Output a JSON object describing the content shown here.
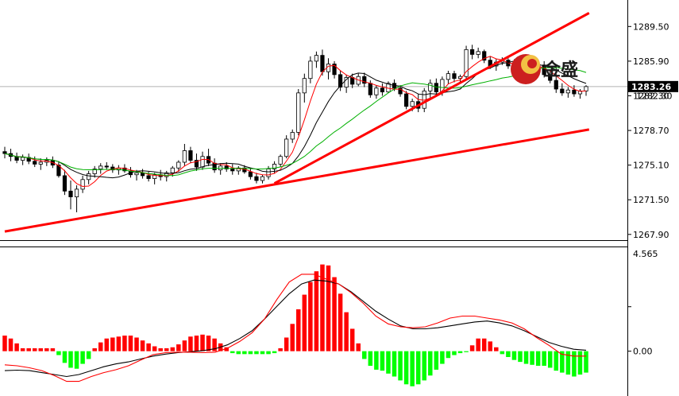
{
  "watermark": {
    "text": "金盛",
    "colors": {
      "outer": "#cc1f1f",
      "inner": "#f2c044"
    }
  },
  "colors": {
    "up_body": "#ffffff",
    "down_body": "#000000",
    "wick": "#000000",
    "ma_fast": "#ff0000",
    "ma_mid": "#000000",
    "ma_slow": "#00b000",
    "trendline": "#ff0000",
    "hist_pos": "#ff0000",
    "hist_neg": "#00ff00",
    "macd": "#000000",
    "signal": "#ff0000",
    "current_line": "#b0b0b0"
  },
  "price_axis": {
    "ticks": [
      "1289.50",
      "1285.90",
      "1282.30",
      "1278.70",
      "1275.10",
      "1271.50",
      "1267.90"
    ],
    "current": "1283.26",
    "extra_label": "1282.30"
  },
  "indicator_axis": {
    "ticks": [
      "4.565",
      "0.00"
    ]
  },
  "chart_data": [
    {
      "type": "candlestick",
      "ylim": [
        1267.8,
        1290.6
      ],
      "grid": false,
      "current_price": 1283.26,
      "candles": [
        [
          1276.5,
          1277,
          1275.8,
          1276.3
        ],
        [
          1276.3,
          1276.8,
          1275.5,
          1276
        ],
        [
          1276,
          1276.4,
          1275.3,
          1275.6
        ],
        [
          1275.6,
          1276.2,
          1275.1,
          1275.9
        ],
        [
          1275.9,
          1276.3,
          1275.2,
          1275.5
        ],
        [
          1275.5,
          1276,
          1274.9,
          1275.2
        ],
        [
          1275.2,
          1275.8,
          1274.6,
          1275.4
        ],
        [
          1275.4,
          1275.9,
          1275,
          1275.6
        ],
        [
          1275.6,
          1276,
          1274.8,
          1275.1
        ],
        [
          1275.1,
          1275.5,
          1273.8,
          1274
        ],
        [
          1274,
          1274.6,
          1272,
          1272.4
        ],
        [
          1272.4,
          1273.5,
          1270.5,
          1271.8
        ],
        [
          1271.8,
          1273,
          1270.2,
          1272.6
        ],
        [
          1272.6,
          1274,
          1272.2,
          1273.6
        ],
        [
          1273.6,
          1274.5,
          1273.1,
          1274.2
        ],
        [
          1274.2,
          1275,
          1273.8,
          1274.7
        ],
        [
          1274.7,
          1275.3,
          1274.2,
          1275
        ],
        [
          1275,
          1275.4,
          1274.6,
          1274.9
        ],
        [
          1274.9,
          1275.2,
          1274.3,
          1274.6
        ],
        [
          1274.6,
          1275.1,
          1274.1,
          1274.8
        ],
        [
          1274.8,
          1275.2,
          1274.3,
          1274.5
        ],
        [
          1274.5,
          1274.9,
          1273.8,
          1274.1
        ],
        [
          1274.1,
          1274.6,
          1273.5,
          1274.3
        ],
        [
          1274.3,
          1274.7,
          1273.7,
          1274
        ],
        [
          1274,
          1274.4,
          1273.4,
          1273.7
        ],
        [
          1273.7,
          1274.3,
          1273.1,
          1274.1
        ],
        [
          1274.1,
          1274.6,
          1273.5,
          1273.9
        ],
        [
          1273.9,
          1274.5,
          1273.4,
          1274.3
        ],
        [
          1274.3,
          1275,
          1273.9,
          1274.8
        ],
        [
          1274.8,
          1275.6,
          1274.4,
          1275.4
        ],
        [
          1275.4,
          1277.3,
          1275,
          1276.6
        ],
        [
          1276.6,
          1277,
          1275.3,
          1275.6
        ],
        [
          1275.6,
          1276.3,
          1274.5,
          1274.9
        ],
        [
          1274.9,
          1276.5,
          1274.6,
          1276
        ],
        [
          1276,
          1276.8,
          1275,
          1275.3
        ],
        [
          1275.3,
          1275.8,
          1274.3,
          1274.6
        ],
        [
          1274.6,
          1275.3,
          1274.1,
          1275
        ],
        [
          1275,
          1275.4,
          1274.4,
          1274.7
        ],
        [
          1274.7,
          1275.2,
          1274.1,
          1274.5
        ],
        [
          1274.5,
          1275,
          1274.1,
          1274.8
        ],
        [
          1274.8,
          1275.1,
          1274.2,
          1274.4
        ],
        [
          1274.4,
          1274.7,
          1273.6,
          1273.9
        ],
        [
          1273.9,
          1274.3,
          1273.2,
          1273.5
        ],
        [
          1273.5,
          1274.1,
          1273.2,
          1273.9
        ],
        [
          1273.9,
          1275,
          1273.6,
          1274.7
        ],
        [
          1274.7,
          1275.5,
          1274.2,
          1275.2
        ],
        [
          1275.2,
          1276.2,
          1274.9,
          1276
        ],
        [
          1276,
          1278.2,
          1275.8,
          1277.8
        ],
        [
          1277.8,
          1278.8,
          1277.4,
          1278.5
        ],
        [
          1278.5,
          1283,
          1278.2,
          1282.6
        ],
        [
          1282.6,
          1284.6,
          1281.6,
          1284.1
        ],
        [
          1284.1,
          1286.4,
          1283.6,
          1285.9
        ],
        [
          1285.9,
          1286.9,
          1285.2,
          1286.5
        ],
        [
          1286.5,
          1287.1,
          1284.4,
          1284.8
        ],
        [
          1284.8,
          1286.2,
          1284,
          1285.6
        ],
        [
          1285.6,
          1285.9,
          1284.1,
          1284.5
        ],
        [
          1284.5,
          1284.9,
          1282.8,
          1283.2
        ],
        [
          1283.2,
          1284.5,
          1282.6,
          1284.2
        ],
        [
          1284.2,
          1284.6,
          1283.1,
          1283.5
        ],
        [
          1283.5,
          1284.6,
          1283.3,
          1284.3
        ],
        [
          1284.3,
          1284.7,
          1283.2,
          1283.6
        ],
        [
          1283.6,
          1283.9,
          1282.1,
          1282.4
        ],
        [
          1282.4,
          1283.4,
          1282,
          1283.1
        ],
        [
          1283.1,
          1283.6,
          1282.3,
          1282.7
        ],
        [
          1282.7,
          1283.8,
          1282.6,
          1283.6
        ],
        [
          1283.6,
          1284,
          1282.8,
          1283.1
        ],
        [
          1283.1,
          1283.4,
          1282.2,
          1282.5
        ],
        [
          1282.5,
          1282.8,
          1280.9,
          1281.2
        ],
        [
          1281.2,
          1282,
          1280.7,
          1281.7
        ],
        [
          1281.7,
          1282.5,
          1280.6,
          1281
        ],
        [
          1281,
          1283.1,
          1280.6,
          1282.8
        ],
        [
          1282.8,
          1284,
          1282.1,
          1283.6
        ],
        [
          1283.6,
          1284.1,
          1282.4,
          1282.7
        ],
        [
          1282.7,
          1284.3,
          1282.3,
          1284
        ],
        [
          1284,
          1284.9,
          1283.5,
          1284.6
        ],
        [
          1284.6,
          1284.9,
          1283.7,
          1284.1
        ],
        [
          1284.1,
          1284.5,
          1283.6,
          1284.3
        ],
        [
          1284.3,
          1287.5,
          1284,
          1287.1
        ],
        [
          1287.1,
          1287.6,
          1286.1,
          1286.6
        ],
        [
          1286.6,
          1287.3,
          1286.2,
          1286.9
        ],
        [
          1286.9,
          1287.1,
          1285.7,
          1286
        ],
        [
          1286,
          1286.4,
          1285.1,
          1285.4
        ],
        [
          1285.4,
          1286.1,
          1284.9,
          1285.8
        ],
        [
          1285.8,
          1286.3,
          1285.5,
          1286
        ],
        [
          1286,
          1286.2,
          1285.1,
          1285.4
        ],
        [
          1285.4,
          1286.1,
          1284.9,
          1285.7
        ],
        [
          1285.7,
          1286,
          1285.1,
          1285.3
        ],
        [
          1285.3,
          1285.9,
          1284.6,
          1285.6
        ],
        [
          1285.6,
          1285.8,
          1284.6,
          1284.9
        ],
        [
          1284.9,
          1285.7,
          1284.6,
          1285.5
        ],
        [
          1285.5,
          1285.9,
          1284.2,
          1284.5
        ],
        [
          1284.5,
          1285,
          1283.6,
          1283.9
        ],
        [
          1283.9,
          1285.3,
          1282.6,
          1283
        ],
        [
          1283,
          1283.6,
          1282.3,
          1282.6
        ],
        [
          1282.6,
          1283.2,
          1282.1,
          1282.9
        ],
        [
          1282.9,
          1283.4,
          1282.2,
          1282.5
        ],
        [
          1282.5,
          1283,
          1282,
          1282.8
        ],
        [
          1282.8,
          1283.4,
          1282.3,
          1283.26
        ]
      ],
      "moving_averages": [
        {
          "name": "",
          "period": 5,
          "color": "#ff0000"
        },
        {
          "name": "",
          "period": 10,
          "color": "#000000"
        },
        {
          "name": "",
          "period": 20,
          "color": "#00b000"
        }
      ],
      "trendlines": [
        {
          "from": [
            0,
            1268.2
          ],
          "to": [
            97.5,
            1278.8
          ]
        },
        {
          "from": [
            45,
            1273.2
          ],
          "to": [
            97.5,
            1290.9
          ]
        }
      ]
    },
    {
      "type": "histogram",
      "ylim": [
        -4.6,
        10.5
      ],
      "ticks": [
        4.565,
        0
      ],
      "hist_values": [
        1.6,
        1.3,
        0.8,
        0.3,
        0.3,
        0.3,
        0.3,
        0.3,
        0.3,
        -0.4,
        -1.2,
        -1.7,
        -1.8,
        -1.3,
        -0.8,
        0.3,
        0.9,
        1.3,
        1.4,
        1.5,
        1.6,
        1.6,
        1.4,
        1.1,
        0.8,
        0.5,
        0.3,
        0.3,
        0.4,
        0.7,
        1.1,
        1.5,
        1.6,
        1.7,
        1.6,
        1.3,
        0.8,
        0.4,
        -0.2,
        -0.3,
        -0.3,
        -0.3,
        -0.3,
        -0.3,
        -0.3,
        -0.2,
        0.3,
        1.4,
        2.8,
        4.3,
        5.8,
        7.1,
        8.2,
        8.9,
        8.8,
        7.6,
        5.9,
        4.0,
        2.3,
        0.8,
        -0.8,
        -1.5,
        -1.9,
        -2.0,
        -2.3,
        -2.6,
        -3.0,
        -3.4,
        -3.6,
        -3.4,
        -3.0,
        -2.5,
        -1.9,
        -1.3,
        -0.7,
        -0.4,
        -0.2,
        -0.1,
        0.6,
        1.3,
        1.3,
        1.0,
        0.4,
        -0.3,
        -0.6,
        -0.9,
        -1.1,
        -1.3,
        -1.4,
        -1.5,
        -1.5,
        -1.7,
        -2.0,
        -2.2,
        -2.4,
        -2.6,
        -2.4,
        -2.2
      ],
      "macd_values": [
        -2.0,
        -1.95,
        -2.0,
        -2.2,
        -2.4,
        -2.6,
        -2.4,
        -2.0,
        -1.6,
        -1.3,
        -1.1,
        -0.8,
        -0.5,
        -0.3,
        -0.15,
        -0.05,
        0.05,
        0.25,
        0.65,
        1.3,
        2.1,
        3.3,
        4.6,
        5.9,
        6.9,
        7.3,
        7.2,
        6.9,
        6.1,
        5.1,
        4.1,
        3.3,
        2.6,
        2.3,
        2.3,
        2.4,
        2.6,
        2.8,
        3.0,
        3.1,
        2.9,
        2.6,
        2.1,
        1.5,
        0.9,
        0.5,
        0.2,
        0.1
      ],
      "signal_values": [
        -1.4,
        -1.5,
        -1.7,
        -2.0,
        -2.5,
        -3.1,
        -3.1,
        -2.6,
        -2.2,
        -1.9,
        -1.5,
        -0.9,
        -0.35,
        -0.15,
        -0.1,
        -0.1,
        -0.15,
        -0.1,
        0.3,
        1.0,
        1.9,
        3.3,
        5.3,
        7.1,
        7.9,
        7.9,
        7.4,
        6.9,
        6.0,
        4.9,
        3.6,
        2.8,
        2.5,
        2.4,
        2.5,
        2.9,
        3.4,
        3.6,
        3.6,
        3.4,
        3.2,
        2.9,
        2.3,
        1.4,
        0.6,
        -0.3,
        -0.5,
        -0.5
      ]
    }
  ]
}
